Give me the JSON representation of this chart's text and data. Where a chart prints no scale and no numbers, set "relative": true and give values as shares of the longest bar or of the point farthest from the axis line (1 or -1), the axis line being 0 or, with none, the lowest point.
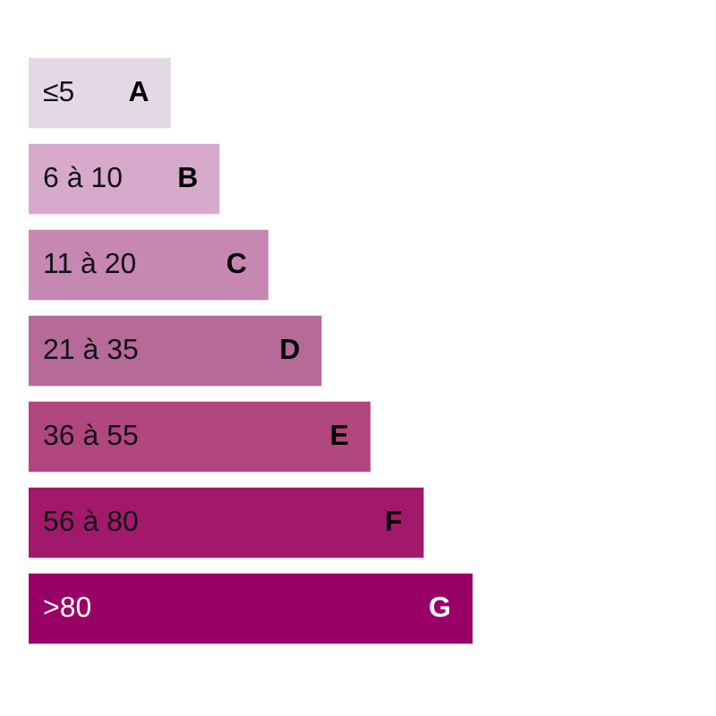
{
  "chart_data": {
    "type": "bar",
    "orientation": "horizontal",
    "relative": true,
    "categories": [
      "≤5",
      "6 à 10",
      "11 à 20",
      "21 à 35",
      "36 à 55",
      "56 à 80",
      ">80"
    ],
    "values": [
      0.32,
      0.43,
      0.54,
      0.66,
      0.77,
      0.89,
      1
    ],
    "colors": [
      "#e2d9e5",
      "#d7aacb",
      "#c687b3",
      "#b66a98",
      "#b2467f",
      "#a2196b",
      "#990066"
    ],
    "annotations": [
      {
        "text": "A",
        "y": "≤5"
      },
      {
        "text": "B",
        "y": "6 à 10"
      },
      {
        "text": "C",
        "y": "11 à 20"
      },
      {
        "text": "D",
        "y": "21 à 35"
      },
      {
        "text": "E",
        "y": "36 à 55"
      },
      {
        "text": "F",
        "y": "56 à 80"
      },
      {
        "text": "G",
        "y": ">80"
      }
    ],
    "legend": false
  }
}
